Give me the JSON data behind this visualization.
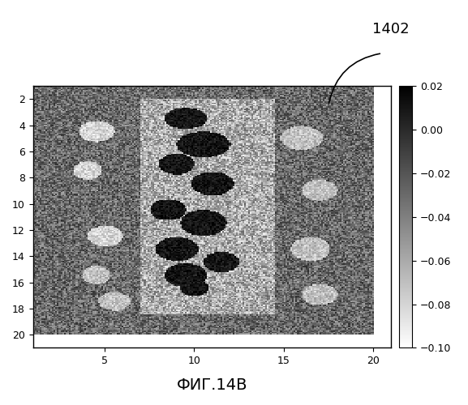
{
  "title": "ФИГ.14В",
  "annotation_label": "1402",
  "xticks": [
    5,
    10,
    15,
    20
  ],
  "yticks": [
    2,
    4,
    6,
    8,
    10,
    12,
    14,
    16,
    18,
    20
  ],
  "cbar_min": -0.1,
  "cbar_max": 0.02,
  "cbar_ticks": [
    0.02,
    0,
    -0.02,
    -0.04,
    -0.06,
    -0.08,
    -0.1
  ],
  "seed": 12345,
  "nx": 200,
  "ny": 200,
  "figsize": [
    5.77,
    5.0
  ],
  "dpi": 100
}
